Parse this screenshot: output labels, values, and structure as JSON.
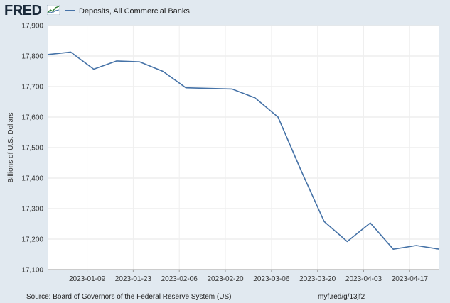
{
  "header": {
    "logo_text": "FRED",
    "legend_label": "Deposits, All Commercial Banks",
    "series_color": "#4572a7"
  },
  "footer": {
    "source": "Source: Board of Governors of the Federal Reserve System (US)",
    "link": "myf.red/g/13jf2"
  },
  "chart_data": {
    "type": "line",
    "ylabel": "Billions of U.S. Dollars",
    "ylim": [
      17100,
      17900
    ],
    "yticks": [
      17100,
      17200,
      17300,
      17400,
      17500,
      17600,
      17700,
      17800,
      17900
    ],
    "ytick_labels": [
      "17,100",
      "17,200",
      "17,300",
      "17,400",
      "17,500",
      "17,600",
      "17,700",
      "17,800",
      "17,900"
    ],
    "xlim": [
      "2022-12-28",
      "2023-04-26"
    ],
    "xticks": [
      "2023-01-09",
      "2023-01-23",
      "2023-02-06",
      "2023-02-20",
      "2023-03-06",
      "2023-03-20",
      "2023-04-03",
      "2023-04-17"
    ],
    "grid": true,
    "series": [
      {
        "name": "Deposits, All Commercial Banks",
        "x": [
          "2022-12-28",
          "2023-01-04",
          "2023-01-11",
          "2023-01-18",
          "2023-01-25",
          "2023-02-01",
          "2023-02-08",
          "2023-02-15",
          "2023-02-22",
          "2023-03-01",
          "2023-03-08",
          "2023-03-15",
          "2023-03-22",
          "2023-03-29",
          "2023-04-05",
          "2023-04-12",
          "2023-04-19",
          "2023-04-26"
        ],
        "values": [
          17805,
          17813,
          17757,
          17784,
          17781,
          17750,
          17696,
          17694,
          17692,
          17663,
          17600,
          17425,
          17258,
          17192,
          17253,
          17167,
          17179,
          17167
        ]
      }
    ]
  }
}
